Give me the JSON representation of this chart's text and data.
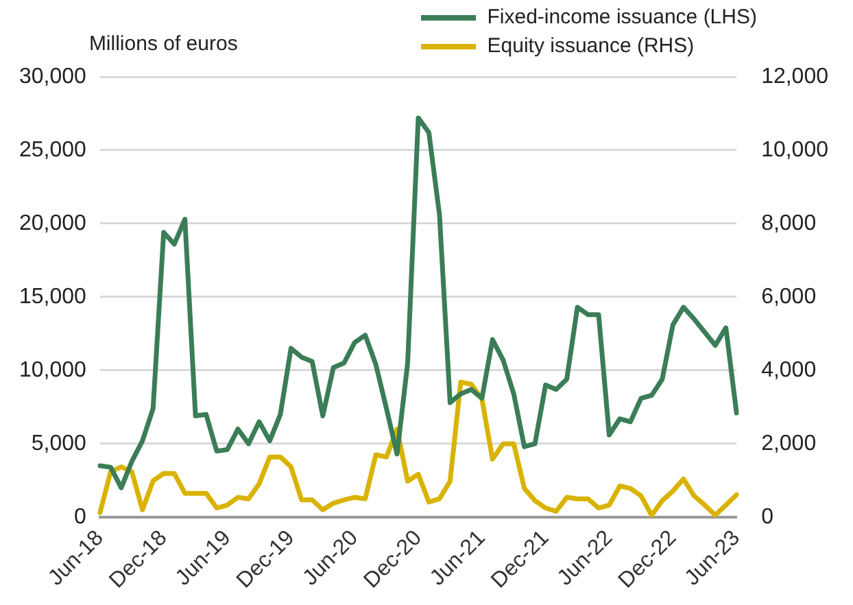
{
  "chart_data": {
    "type": "line",
    "ylabel": "Millions of euros",
    "categories": [
      "Jun-18",
      null,
      null,
      null,
      null,
      null,
      "Dec-18",
      null,
      null,
      null,
      null,
      null,
      "Jun-19",
      null,
      null,
      null,
      null,
      null,
      "Dec-19",
      null,
      null,
      null,
      null,
      null,
      "Jun-20",
      null,
      null,
      null,
      null,
      null,
      "Dec-20",
      null,
      null,
      null,
      null,
      null,
      "Jun-21",
      null,
      null,
      null,
      null,
      null,
      "Dec-21",
      null,
      null,
      null,
      null,
      null,
      "Jun-22",
      null,
      null,
      null,
      null,
      null,
      "Dec-22",
      null,
      null,
      null,
      null,
      null,
      "Jun-23"
    ],
    "series": [
      {
        "name": "Fixed-income issuance (LHS)",
        "color": "#3a7d57",
        "values": [
          3500,
          3400,
          2000,
          3800,
          5200,
          7400,
          19400,
          18600,
          20300,
          6900,
          7000,
          4500,
          4600,
          6000,
          5000,
          6500,
          5200,
          7000,
          11500,
          10900,
          10600,
          6900,
          10200,
          10500,
          11900,
          12400,
          10400,
          7400,
          4300,
          10500,
          27200,
          26200,
          20600,
          7800,
          8400,
          8700,
          8100,
          12100,
          10700,
          8400,
          4800,
          5000,
          9000,
          8700,
          9400,
          14300,
          13800,
          13800,
          5600,
          6700,
          6500,
          8100,
          8300,
          9400,
          13100,
          14300,
          13500,
          12600,
          11700,
          12900,
          7100
        ]
      },
      {
        "name": "Equity issuance (RHS)",
        "color": "#d9b300",
        "axis": "y2",
        "values": [
          120,
          1240,
          1370,
          1240,
          200,
          990,
          1190,
          1190,
          650,
          650,
          650,
          250,
          330,
          540,
          500,
          910,
          1640,
          1640,
          1370,
          470,
          470,
          200,
          380,
          470,
          540,
          500,
          1700,
          1640,
          2400,
          980,
          1170,
          410,
          500,
          980,
          3680,
          3620,
          3220,
          1580,
          2000,
          2000,
          780,
          450,
          250,
          160,
          540,
          500,
          500,
          250,
          330,
          850,
          780,
          580,
          50,
          450,
          710,
          1040,
          580,
          330,
          50,
          330,
          610
        ]
      }
    ],
    "ylim": [
      0,
      30000
    ],
    "yticks": [
      0,
      {
        "value": 5000,
        "label": "5,000"
      },
      {
        "value": 10000,
        "label": "10,000"
      },
      {
        "value": 15000,
        "label": "15,000"
      },
      {
        "value": 20000,
        "label": "20,000"
      },
      {
        "value": 25000,
        "label": "25,000"
      },
      {
        "value": 30000,
        "label": "30,000"
      }
    ],
    "y2lim": [
      0,
      12000
    ],
    "y2ticks": [
      0,
      {
        "value": 2000,
        "label": "2,000"
      },
      {
        "value": 4000,
        "label": "4,000"
      },
      {
        "value": 6000,
        "label": "6,000"
      },
      {
        "value": 8000,
        "label": "8,000"
      },
      {
        "value": 10000,
        "label": "10,000"
      },
      {
        "value": 12000,
        "label": "12,000"
      }
    ],
    "grid": "y",
    "legend": "top right",
    "marker": "none",
    "line_style": "solid"
  }
}
